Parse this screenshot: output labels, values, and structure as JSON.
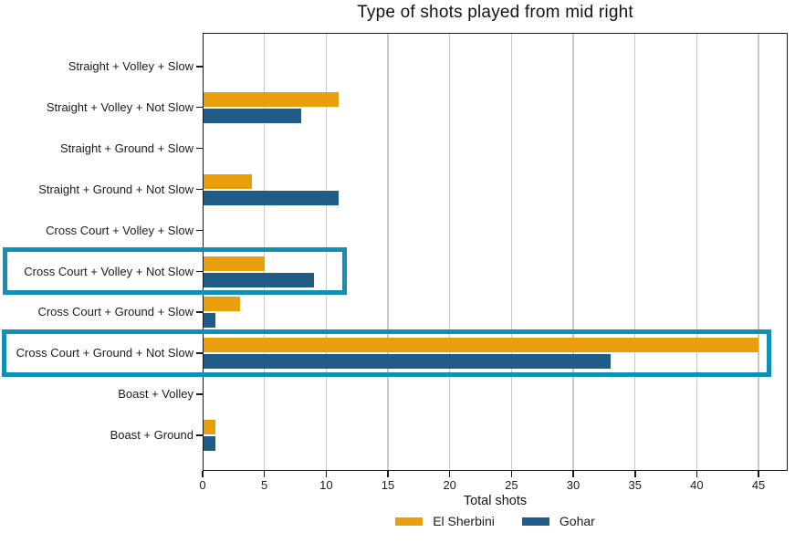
{
  "chart_data": {
    "type": "bar",
    "orientation": "horizontal",
    "title": "Type of shots played from mid right",
    "xlabel": "Total shots",
    "categories": [
      "Straight + Volley + Slow",
      "Straight + Volley + Not Slow",
      "Straight + Ground + Slow",
      "Straight + Ground + Not Slow",
      "Cross Court + Volley + Slow",
      "Cross Court + Volley + Not Slow",
      "Cross Court + Ground + Slow",
      "Cross Court + Ground + Not Slow",
      "Boast + Volley",
      "Boast + Ground"
    ],
    "series": [
      {
        "name": "El Sherbini",
        "color": "#e89f0b",
        "values": [
          0,
          11,
          0,
          4,
          0,
          5,
          3,
          45,
          0,
          1
        ]
      },
      {
        "name": "Gohar",
        "color": "#1f5c87",
        "values": [
          0,
          8,
          0,
          11,
          0,
          9,
          1,
          33,
          0,
          1
        ]
      }
    ],
    "xlim": [
      0,
      47.36
    ],
    "xticks": [
      0,
      5,
      10,
      15,
      20,
      25,
      30,
      35,
      40,
      45
    ],
    "grid": "vertical",
    "gridline_color": "#c9c9c9",
    "spine_color": "#1a1a1a",
    "legend_position": "bottom",
    "highlight_color": "#1090b5",
    "highlights": [
      {
        "category": "Cross Court + Volley + Not Slow",
        "row_index": 5,
        "extends_to_value": 11.7
      },
      {
        "category": "Cross Court + Ground + Not Slow",
        "row_index": 7,
        "extends_to_value": 46.0
      }
    ]
  }
}
